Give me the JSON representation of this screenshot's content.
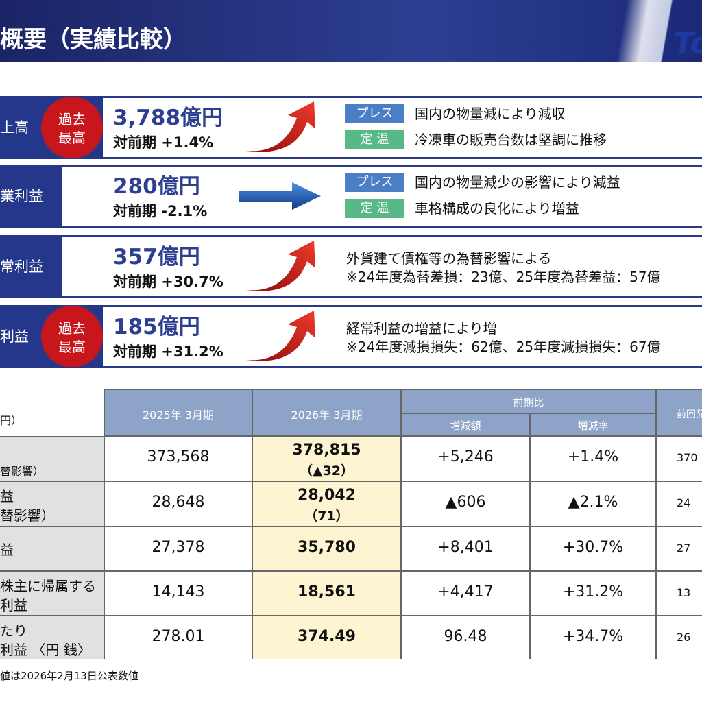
{
  "header": {
    "title": "概要（実績比較）",
    "logo": "To"
  },
  "summary": [
    {
      "label": "上高",
      "badge": [
        "過去",
        "最高"
      ],
      "value": "3,788億円",
      "change": "対前期 +1.4%",
      "arrow": "up",
      "notes": [
        {
          "tag": "プレス",
          "color": "#4a7fc6",
          "text": "国内の物量減により減収"
        },
        {
          "tag": "定 温",
          "color": "#58b987",
          "text": "冷凍車の販売台数は堅調に推移"
        }
      ]
    },
    {
      "label": "業利益",
      "value": "280億円",
      "change": "対前期 -2.1%",
      "arrow": "flat",
      "notes": [
        {
          "tag": "プレス",
          "color": "#4a7fc6",
          "text": "国内の物量減少の影響により減益"
        },
        {
          "tag": "定 温",
          "color": "#58b987",
          "text": "車格構成の良化により増益"
        }
      ]
    },
    {
      "label": "常利益",
      "value": "357億円",
      "change": "対前期 +30.7%",
      "arrow": "up",
      "lines": [
        "外貨建て債権等の為替影響による",
        "※24年度為替差損：23億、25年度為替差益：57億"
      ]
    },
    {
      "label": "利益",
      "badge": [
        "過去",
        "最高"
      ],
      "value": "185億円",
      "change": "対前期 +31.2%",
      "arrow": "up",
      "lines": [
        "経常利益の増益により増",
        "※24年度減損損失：62億、25年度減損損失：67億"
      ]
    }
  ],
  "table": {
    "unit": "円）",
    "columns": [
      "2025年 3月期",
      "2026年 3月期"
    ],
    "group": "前期比",
    "subcolumns": [
      "増減額",
      "増減率"
    ],
    "last": "前回発",
    "rows": [
      {
        "label": [
          "替影響）"
        ],
        "cells": [
          "373,568",
          [
            "378,815",
            "（▲32）"
          ],
          "+5,246",
          "+1.4%",
          "370"
        ]
      },
      {
        "label": [
          "益",
          "替影響）"
        ],
        "cells": [
          "28,648",
          [
            "28,042",
            "（71）"
          ],
          "▲606",
          "▲2.1%",
          "24"
        ]
      },
      {
        "label": [
          "益"
        ],
        "cells": [
          "27,378",
          [
            "35,780"
          ],
          "+8,401",
          "+30.7%",
          "27"
        ]
      },
      {
        "label": [
          "株主に帰属する",
          "利益"
        ],
        "cells": [
          "14,143",
          [
            "18,561"
          ],
          "+4,417",
          "+31.2%",
          "13"
        ]
      },
      {
        "label": [
          "たり",
          "利益 〈円 銭〉"
        ],
        "cells": [
          "278.01",
          [
            "374.49"
          ],
          "96.48",
          "+34.7%",
          "26"
        ]
      }
    ]
  },
  "footnote": "値は2026年2月13日公表数値"
}
